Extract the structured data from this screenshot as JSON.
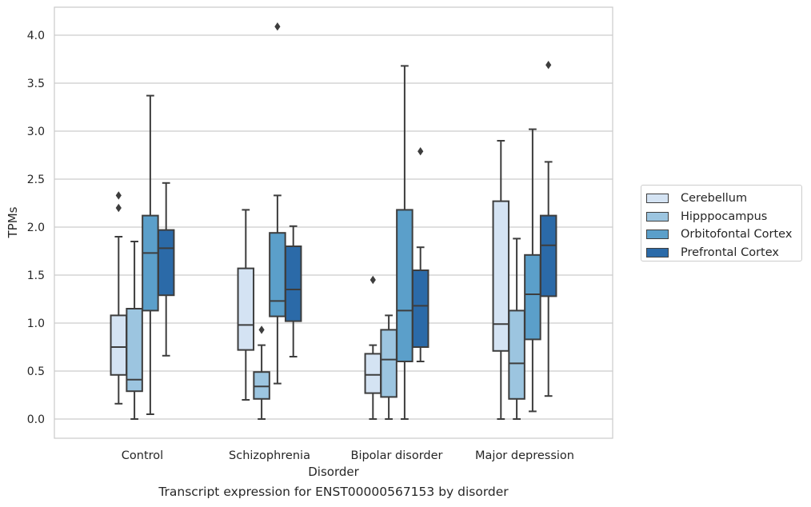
{
  "caption": "Transcript expression for ENST00000567153 by disorder",
  "chart_data": {
    "type": "box",
    "xlabel": "Disorder",
    "ylabel": "TPMs",
    "ylim": [
      -0.2,
      4.3
    ],
    "yticks": [
      "0.0",
      "0.5",
      "1.0",
      "1.5",
      "2.0",
      "2.5",
      "3.0",
      "3.5",
      "4.0"
    ],
    "grid": "horizontal",
    "legend_position": "right",
    "categories": [
      "Control",
      "Schizophrenia",
      "Bipolar disorder",
      "Major depression"
    ],
    "series": [
      {
        "name": "Cerebellum",
        "color": "#d4e3f3",
        "boxes": [
          {
            "whislo": 0.16,
            "q1": 0.46,
            "med": 0.75,
            "q3": 1.08,
            "whishi": 1.9,
            "fliers": [
              2.2,
              2.33
            ]
          },
          {
            "whislo": 0.2,
            "q1": 0.72,
            "med": 0.98,
            "q3": 1.57,
            "whishi": 2.18,
            "fliers": []
          },
          {
            "whislo": 0.0,
            "q1": 0.27,
            "med": 0.46,
            "q3": 0.68,
            "whishi": 0.77,
            "fliers": [
              1.45
            ]
          },
          {
            "whislo": 0.0,
            "q1": 0.71,
            "med": 0.99,
            "q3": 2.27,
            "whishi": 2.9,
            "fliers": []
          }
        ]
      },
      {
        "name": "Hipppocampus",
        "color": "#9cc5e0",
        "boxes": [
          {
            "whislo": 0.0,
            "q1": 0.29,
            "med": 0.41,
            "q3": 1.15,
            "whishi": 1.85,
            "fliers": []
          },
          {
            "whislo": 0.0,
            "q1": 0.21,
            "med": 0.34,
            "q3": 0.49,
            "whishi": 0.77,
            "fliers": [
              0.93
            ]
          },
          {
            "whislo": 0.0,
            "q1": 0.23,
            "med": 0.62,
            "q3": 0.93,
            "whishi": 1.08,
            "fliers": []
          },
          {
            "whislo": 0.0,
            "q1": 0.21,
            "med": 0.58,
            "q3": 1.13,
            "whishi": 1.88,
            "fliers": []
          }
        ]
      },
      {
        "name": "Orbitofontal Cortex",
        "color": "#5b9fca",
        "boxes": [
          {
            "whislo": 0.05,
            "q1": 1.13,
            "med": 1.73,
            "q3": 2.12,
            "whishi": 3.37,
            "fliers": []
          },
          {
            "whislo": 0.37,
            "q1": 1.07,
            "med": 1.23,
            "q3": 1.94,
            "whishi": 2.33,
            "fliers": [
              4.09
            ]
          },
          {
            "whislo": 0.0,
            "q1": 0.6,
            "med": 1.13,
            "q3": 2.18,
            "whishi": 3.68,
            "fliers": []
          },
          {
            "whislo": 0.08,
            "q1": 0.83,
            "med": 1.3,
            "q3": 1.71,
            "whishi": 3.02,
            "fliers": []
          }
        ]
      },
      {
        "name": "Prefrontal Cortex",
        "color": "#2b6aa8",
        "boxes": [
          {
            "whislo": 0.66,
            "q1": 1.29,
            "med": 1.78,
            "q3": 1.97,
            "whishi": 2.46,
            "fliers": []
          },
          {
            "whislo": 0.65,
            "q1": 1.02,
            "med": 1.35,
            "q3": 1.8,
            "whishi": 2.01,
            "fliers": []
          },
          {
            "whislo": 0.6,
            "q1": 0.75,
            "med": 1.18,
            "q3": 1.55,
            "whishi": 1.79,
            "fliers": [
              2.79
            ]
          },
          {
            "whislo": 0.24,
            "q1": 1.28,
            "med": 1.81,
            "q3": 2.12,
            "whishi": 2.68,
            "fliers": [
              3.69
            ]
          }
        ]
      }
    ]
  }
}
